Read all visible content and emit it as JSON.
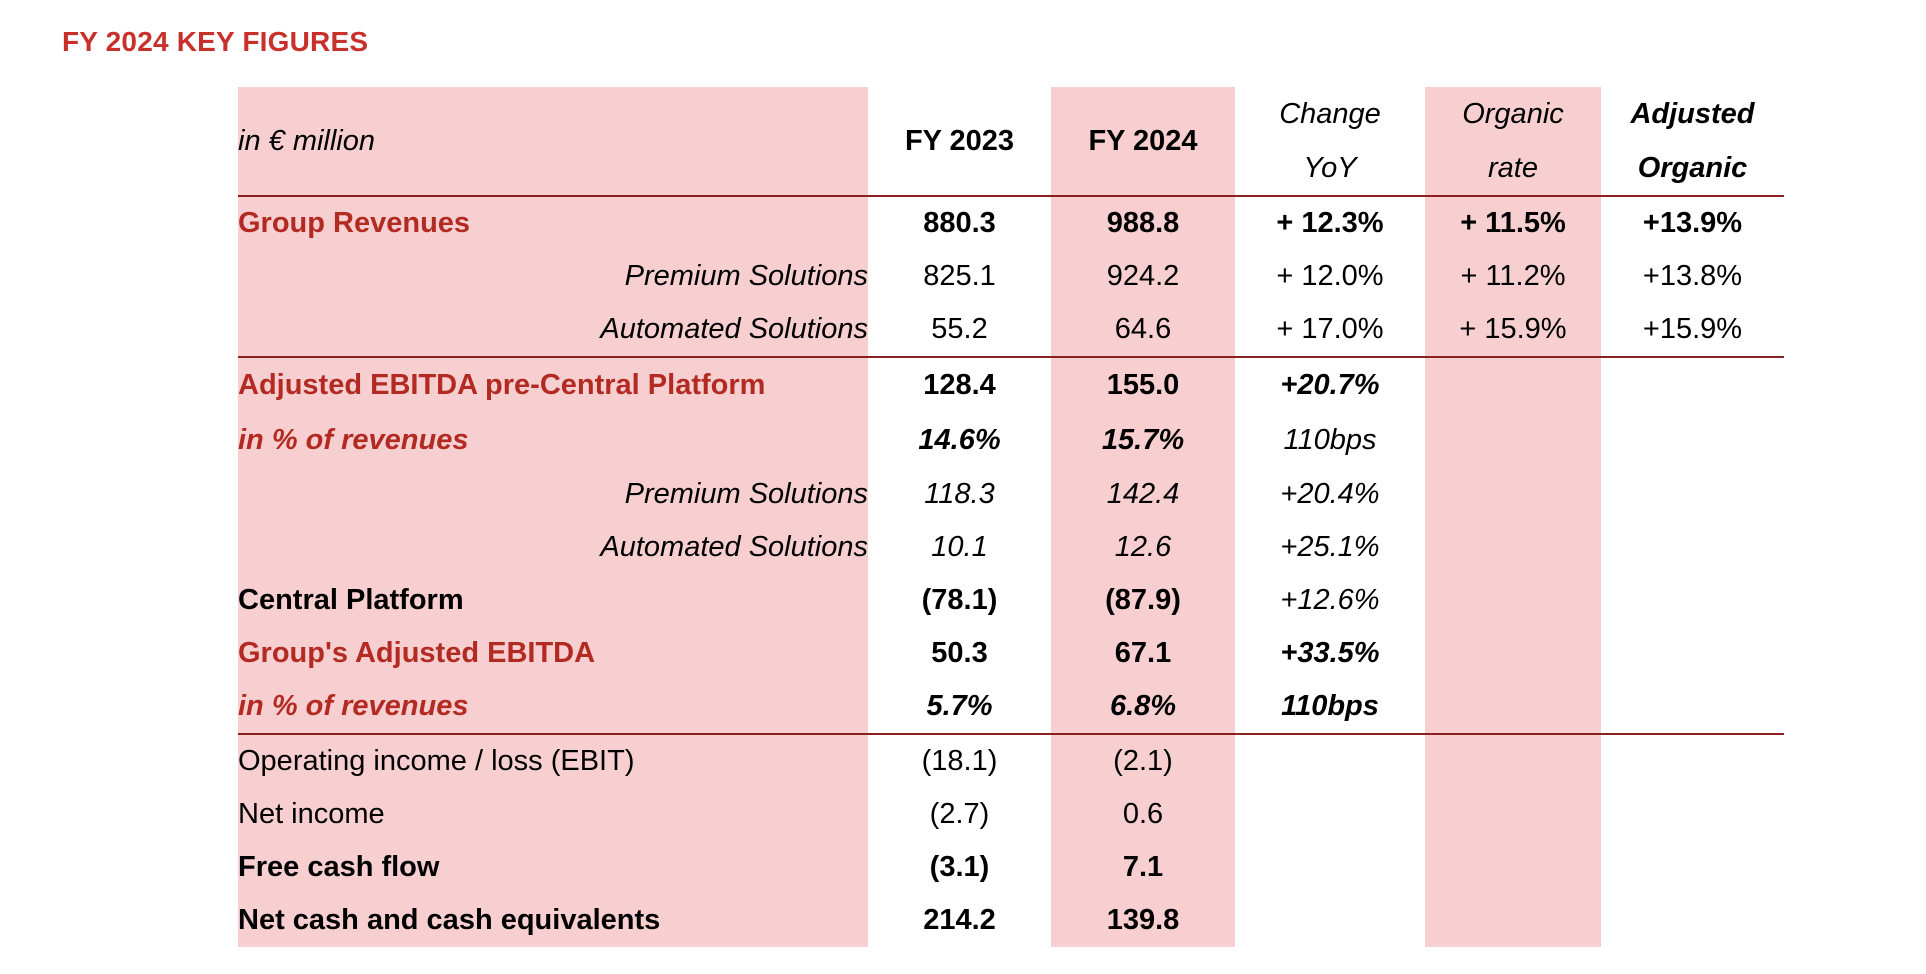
{
  "page_title": "FY 2024 KEY FIGURES",
  "header": {
    "unit": "in € million",
    "fy2023": "FY 2023",
    "fy2024": "FY 2024",
    "change_l1": "Change",
    "change_l2": "YoY",
    "organic_l1": "Organic",
    "organic_l2": "rate",
    "adj_l1": "Adjusted",
    "adj_l2": "Organic"
  },
  "rows": {
    "group_revenues": {
      "label": "Group Revenues",
      "fy2023": "880.3",
      "fy2024": "988.8",
      "change": "+ 12.3%",
      "organic": "+ 11.5%",
      "adj": "+13.9%"
    },
    "rev_premium": {
      "label": "Premium Solutions",
      "fy2023": "825.1",
      "fy2024": "924.2",
      "change": "+ 12.0%",
      "organic": "+ 11.2%",
      "adj": "+13.8%"
    },
    "rev_automated": {
      "label": "Automated Solutions",
      "fy2023": "55.2",
      "fy2024": "64.6",
      "change": "+ 17.0%",
      "organic": "+ 15.9%",
      "adj": "+15.9%"
    },
    "ebitda_pre": {
      "label": "Adjusted EBITDA pre-Central Platform",
      "fy2023": "128.4",
      "fy2024": "155.0",
      "change": "+20.7%"
    },
    "ebitda_pre_pct": {
      "label": "in % of revenues",
      "fy2023": "14.6%",
      "fy2024": "15.7%",
      "change": "110bps"
    },
    "ebitda_premium": {
      "label": "Premium Solutions",
      "fy2023": "118.3",
      "fy2024": "142.4",
      "change": "+20.4%"
    },
    "ebitda_automated": {
      "label": "Automated Solutions",
      "fy2023": "10.1",
      "fy2024": "12.6",
      "change": "+25.1%"
    },
    "central_platform": {
      "label": "Central Platform",
      "fy2023": "(78.1)",
      "fy2024": "(87.9)",
      "change": "+12.6%"
    },
    "group_ebitda": {
      "label": "Group's Adjusted EBITDA",
      "fy2023": "50.3",
      "fy2024": "67.1",
      "change": "+33.5%"
    },
    "group_ebitda_pct": {
      "label": "in % of revenues",
      "fy2023": "5.7%",
      "fy2024": "6.8%",
      "change": "110bps"
    },
    "ebit": {
      "label": "Operating income / loss (EBIT)",
      "fy2023": "(18.1)",
      "fy2024": "(2.1)"
    },
    "net_income": {
      "label": "Net income",
      "fy2023": "(2.7)",
      "fy2024": "0.6"
    },
    "fcf": {
      "label": "Free cash flow",
      "fy2023": "(3.1)",
      "fy2024": "7.1"
    },
    "net_cash": {
      "label": "Net cash and cash equivalents",
      "fy2023": "214.2",
      "fy2024": "139.8"
    }
  },
  "colors": {
    "title_red": "#c8312b",
    "label_red": "#b22a22",
    "pink_fill": "#f7cfd1",
    "rule": "#8b2020"
  }
}
